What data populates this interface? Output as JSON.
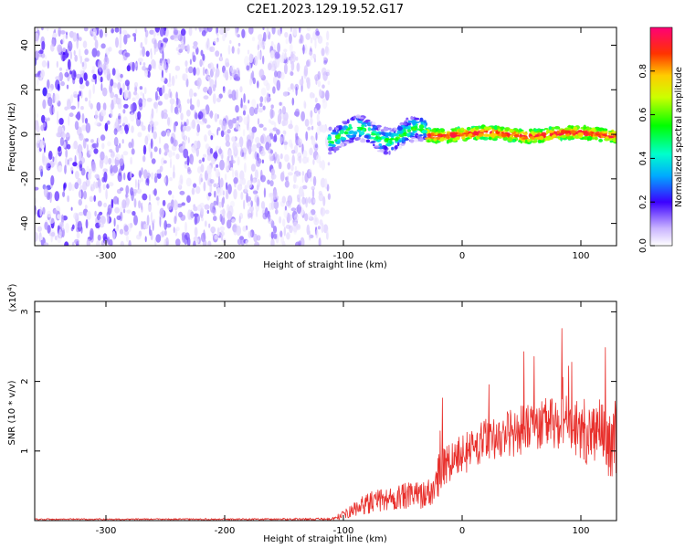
{
  "title": "C2E1.2023.129.19.52.G17",
  "chart_data": [
    {
      "type": "heatmap",
      "xlabel": "Height of straight line (km)",
      "ylabel": "Frequency (Hz)",
      "xlim": [
        -360,
        130
      ],
      "ylim": [
        -50,
        48
      ],
      "x_ticks": [
        -300,
        -200,
        -100,
        0,
        100
      ],
      "y_ticks": [
        -40,
        -20,
        0,
        20,
        40
      ],
      "x_tick_labels": [
        "-300",
        "-200",
        "-100",
        "0",
        "100"
      ],
      "y_tick_labels": [
        "-40",
        "-20",
        "0",
        "20",
        "40"
      ],
      "noise_region": {
        "x_from": -360,
        "x_to": -112,
        "f_from": -50,
        "f_to": 48,
        "amplitude_max": 0.2
      },
      "signal_band": {
        "x_from": -112,
        "x_to": 130,
        "center_hz": 0,
        "half_width_hz": 4,
        "amplitude_peak": 0.95
      },
      "colorbar": {
        "label": "Normalized spectral amplitude",
        "range": [
          0,
          1
        ],
        "ticks": [
          0.0,
          0.2,
          0.4,
          0.6,
          0.8
        ],
        "tick_labels": [
          "0.0",
          "0.2",
          "0.4",
          "0.6",
          "0.8"
        ]
      }
    },
    {
      "type": "line",
      "xlabel": "Height of straight line (km)",
      "ylabel": "SNR (10 * v/v)",
      "y_multiplier": "(x10",
      "y_multiplier_exp": "4",
      "y_multiplier_close": ")",
      "xlim": [
        -360,
        130
      ],
      "ylim": [
        0,
        3.15
      ],
      "x_ticks": [
        -300,
        -200,
        -100,
        0,
        100
      ],
      "y_ticks": [
        1,
        2,
        3
      ],
      "x_tick_labels": [
        "-300",
        "-200",
        "-100",
        "0",
        "100"
      ],
      "y_tick_labels": [
        "1",
        "2",
        "3"
      ],
      "color": "#e8302c",
      "series": [
        {
          "x": [
            -360,
            -300,
            -200,
            -110,
            -100,
            -80,
            -60,
            -40,
            -25,
            -18,
            -10,
            0,
            10,
            20,
            30,
            40,
            50,
            60,
            70,
            80,
            90,
            100,
            110,
            120,
            130
          ],
          "mean": [
            0.02,
            0.02,
            0.02,
            0.02,
            0.08,
            0.25,
            0.32,
            0.36,
            0.4,
            0.75,
            0.85,
            0.95,
            1.05,
            1.15,
            1.2,
            1.25,
            1.3,
            1.35,
            1.4,
            1.4,
            1.4,
            1.3,
            1.25,
            1.15,
            1.1
          ],
          "spread": [
            0.01,
            0.01,
            0.01,
            0.02,
            0.06,
            0.15,
            0.18,
            0.2,
            0.2,
            0.35,
            0.3,
            0.3,
            0.3,
            0.32,
            0.3,
            0.35,
            0.35,
            0.35,
            0.35,
            0.4,
            0.4,
            0.45,
            0.5,
            0.5,
            0.5
          ]
        }
      ]
    }
  ]
}
